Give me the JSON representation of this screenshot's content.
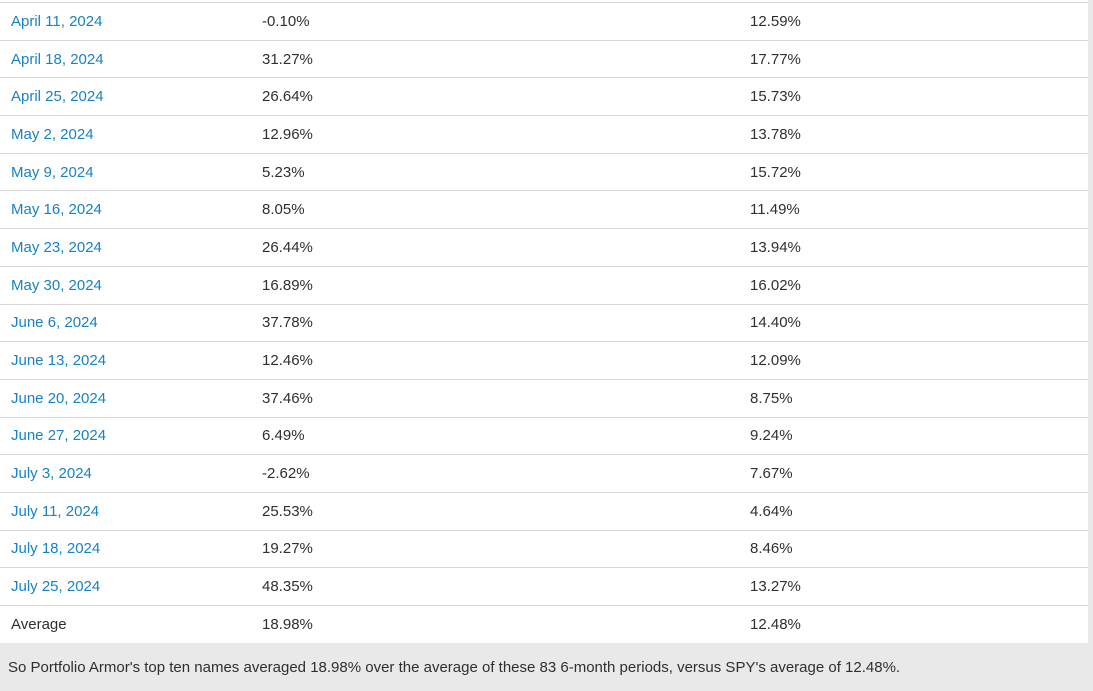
{
  "colors": {
    "link": "#1782c6",
    "text": "#2f2f2f",
    "row_border": "#d8d8d8",
    "page_background": "#e9e9e9",
    "table_background": "#ffffff"
  },
  "table": {
    "rows": [
      {
        "date": "April 11, 2024",
        "top_ten_return": "-0.10%",
        "spy_return": "12.59%"
      },
      {
        "date": "April 18, 2024",
        "top_ten_return": "31.27%",
        "spy_return": "17.77%"
      },
      {
        "date": "April 25, 2024",
        "top_ten_return": "26.64%",
        "spy_return": "15.73%"
      },
      {
        "date": "May 2, 2024",
        "top_ten_return": "12.96%",
        "spy_return": "13.78%"
      },
      {
        "date": "May 9, 2024",
        "top_ten_return": "5.23%",
        "spy_return": "15.72%"
      },
      {
        "date": "May 16, 2024",
        "top_ten_return": "8.05%",
        "spy_return": "11.49%"
      },
      {
        "date": "May 23, 2024",
        "top_ten_return": "26.44%",
        "spy_return": "13.94%"
      },
      {
        "date": "May 30, 2024",
        "top_ten_return": "16.89%",
        "spy_return": "16.02%"
      },
      {
        "date": "June 6, 2024",
        "top_ten_return": "37.78%",
        "spy_return": "14.40%"
      },
      {
        "date": "June 13, 2024",
        "top_ten_return": "12.46%",
        "spy_return": "12.09%"
      },
      {
        "date": "June 20, 2024",
        "top_ten_return": "37.46%",
        "spy_return": "8.75%"
      },
      {
        "date": "June 27, 2024",
        "top_ten_return": "6.49%",
        "spy_return": "9.24%"
      },
      {
        "date": "July 3, 2024",
        "top_ten_return": "-2.62%",
        "spy_return": "7.67%"
      },
      {
        "date": "July 11, 2024",
        "top_ten_return": "25.53%",
        "spy_return": "4.64%"
      },
      {
        "date": "July 18, 2024",
        "top_ten_return": "19.27%",
        "spy_return": "8.46%"
      },
      {
        "date": "July 25, 2024",
        "top_ten_return": "48.35%",
        "spy_return": "13.27%"
      }
    ],
    "average_row": {
      "label": "Average",
      "top_ten_return": "18.98%",
      "spy_return": "12.48%"
    }
  },
  "footer": {
    "text": "So Portfolio Armor's top ten names averaged 18.98% over the average of these 83 6-month periods, versus SPY's average of 12.48%."
  }
}
